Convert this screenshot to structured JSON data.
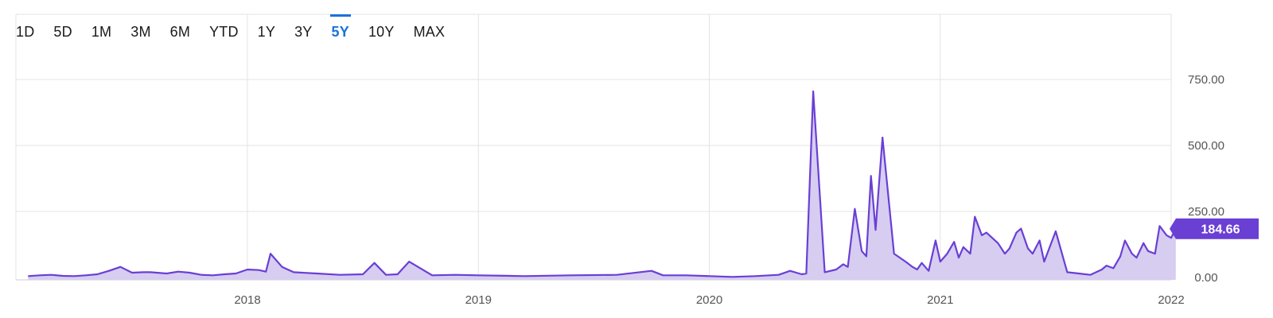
{
  "range_selector": {
    "items": [
      "1D",
      "5D",
      "1M",
      "3M",
      "6M",
      "YTD",
      "1Y",
      "3Y",
      "5Y",
      "10Y",
      "MAX"
    ],
    "active": "5Y"
  },
  "colors": {
    "line": "#6a3fd4",
    "fill": "#d6cdf1",
    "active": "#1a73d9",
    "badge": "#6a3fd4"
  },
  "chart_data": {
    "type": "area",
    "title": "",
    "xlabel": "",
    "ylabel": "",
    "xlim": [
      2017.05,
      2022.03
    ],
    "ylim": [
      0,
      1000
    ],
    "y_ticks": [
      0,
      250,
      500,
      750
    ],
    "y_tick_labels": [
      "0.00",
      "250.00",
      "500.00",
      "750.00"
    ],
    "x_ticks": [
      2018,
      2019,
      2020,
      2021,
      2022
    ],
    "x_tick_labels": [
      "2018",
      "2019",
      "2020",
      "2021",
      "2022"
    ],
    "grid": true,
    "last_value_label": "184.66",
    "series": [
      {
        "x": [
          2017.05,
          2017.1,
          2017.15,
          2017.2,
          2017.25,
          2017.3,
          2017.35,
          2017.4,
          2017.45,
          2017.5,
          2017.55,
          2017.58,
          2017.65,
          2017.7,
          2017.75,
          2017.8,
          2017.85,
          2017.9,
          2017.95,
          2018.0,
          2018.05,
          2018.08,
          2018.1,
          2018.15,
          2018.2,
          2018.3,
          2018.4,
          2018.5,
          2018.55,
          2018.6,
          2018.65,
          2018.7,
          2018.8,
          2018.9,
          2019.0,
          2019.2,
          2019.4,
          2019.6,
          2019.75,
          2019.8,
          2019.9,
          2020.0,
          2020.1,
          2020.2,
          2020.3,
          2020.35,
          2020.4,
          2020.42,
          2020.45,
          2020.5,
          2020.55,
          2020.58,
          2020.6,
          2020.63,
          2020.66,
          2020.68,
          2020.7,
          2020.72,
          2020.75,
          2020.8,
          2020.85,
          2020.88,
          2020.9,
          2020.92,
          2020.95,
          2020.98,
          2021.0,
          2021.03,
          2021.06,
          2021.08,
          2021.1,
          2021.13,
          2021.15,
          2021.18,
          2021.2,
          2021.25,
          2021.28,
          2021.3,
          2021.33,
          2021.35,
          2021.38,
          2021.4,
          2021.43,
          2021.45,
          2021.5,
          2021.55,
          2021.6,
          2021.65,
          2021.7,
          2021.72,
          2021.75,
          2021.78,
          2021.8,
          2021.83,
          2021.85,
          2021.88,
          2021.9,
          2021.93,
          2021.95,
          2021.98,
          2022.0,
          2022.02
        ],
        "y": [
          5,
          8,
          10,
          6,
          5,
          8,
          12,
          25,
          40,
          18,
          20,
          20,
          15,
          22,
          18,
          10,
          8,
          12,
          15,
          30,
          28,
          22,
          90,
          40,
          20,
          15,
          10,
          12,
          55,
          10,
          12,
          60,
          8,
          10,
          8,
          5,
          8,
          10,
          25,
          8,
          8,
          5,
          2,
          5,
          10,
          25,
          12,
          15,
          705,
          20,
          30,
          50,
          40,
          260,
          100,
          80,
          385,
          180,
          530,
          90,
          60,
          40,
          30,
          55,
          25,
          140,
          60,
          90,
          135,
          75,
          115,
          90,
          230,
          160,
          170,
          130,
          90,
          110,
          170,
          185,
          110,
          90,
          140,
          60,
          175,
          20,
          15,
          10,
          30,
          45,
          35,
          80,
          140,
          90,
          75,
          130,
          100,
          90,
          195,
          160,
          150,
          184.66
        ]
      }
    ]
  }
}
